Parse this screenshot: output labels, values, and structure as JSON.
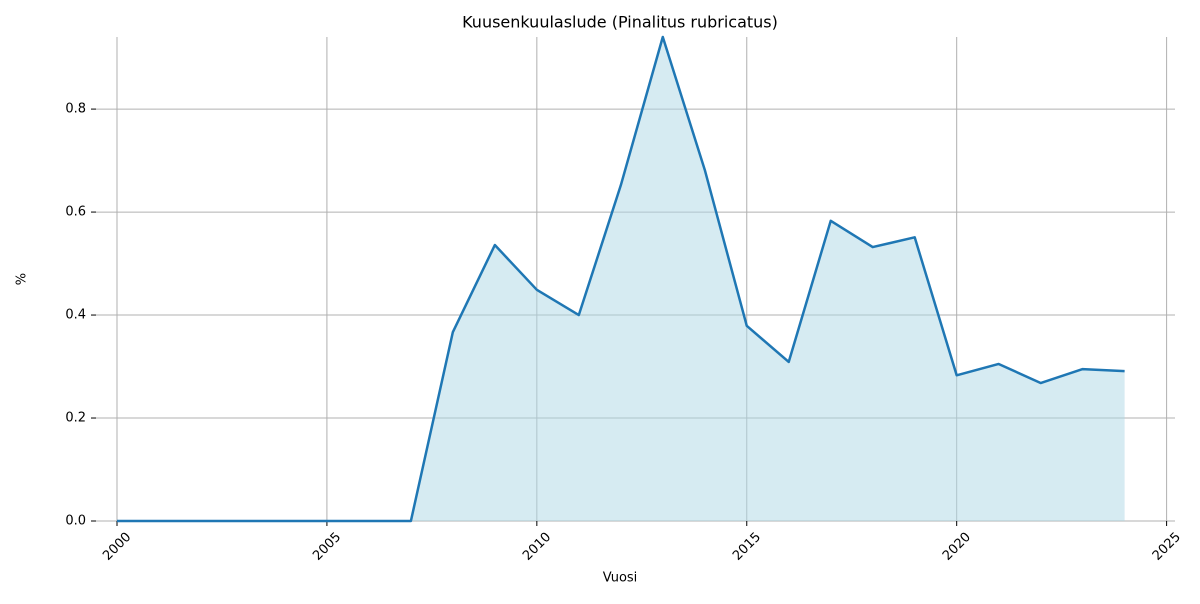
{
  "chart_data": {
    "type": "area",
    "title": "Kuusenkuulaslude (Pinalitus rubricatus)",
    "xlabel": "Vuosi",
    "ylabel": "%",
    "x": [
      2000,
      2001,
      2002,
      2003,
      2004,
      2005,
      2006,
      2007,
      2008,
      2009,
      2010,
      2011,
      2012,
      2013,
      2014,
      2015,
      2016,
      2017,
      2018,
      2019,
      2020,
      2021,
      2022,
      2023,
      2024
    ],
    "series": [
      {
        "color": "#1f77b4",
        "fill": "#add8e6",
        "values": [
          0,
          0,
          0,
          0,
          0,
          0,
          0,
          0,
          0.367,
          0.536,
          0.449,
          0.4,
          0.652,
          0.94,
          0.682,
          0.379,
          0.309,
          0.583,
          0.532,
          0.551,
          0.283,
          0.305,
          0.268,
          0.295,
          0.291
        ]
      }
    ],
    "xlim": [
      1999.5,
      2025.2
    ],
    "ylim": [
      0,
      0.94
    ],
    "xticks": [
      2000,
      2005,
      2010,
      2015,
      2020,
      2025
    ],
    "yticks": [
      {
        "value": 0,
        "label": "0.0"
      },
      0.2,
      0.4,
      0.6,
      0.8
    ],
    "grid": true
  }
}
